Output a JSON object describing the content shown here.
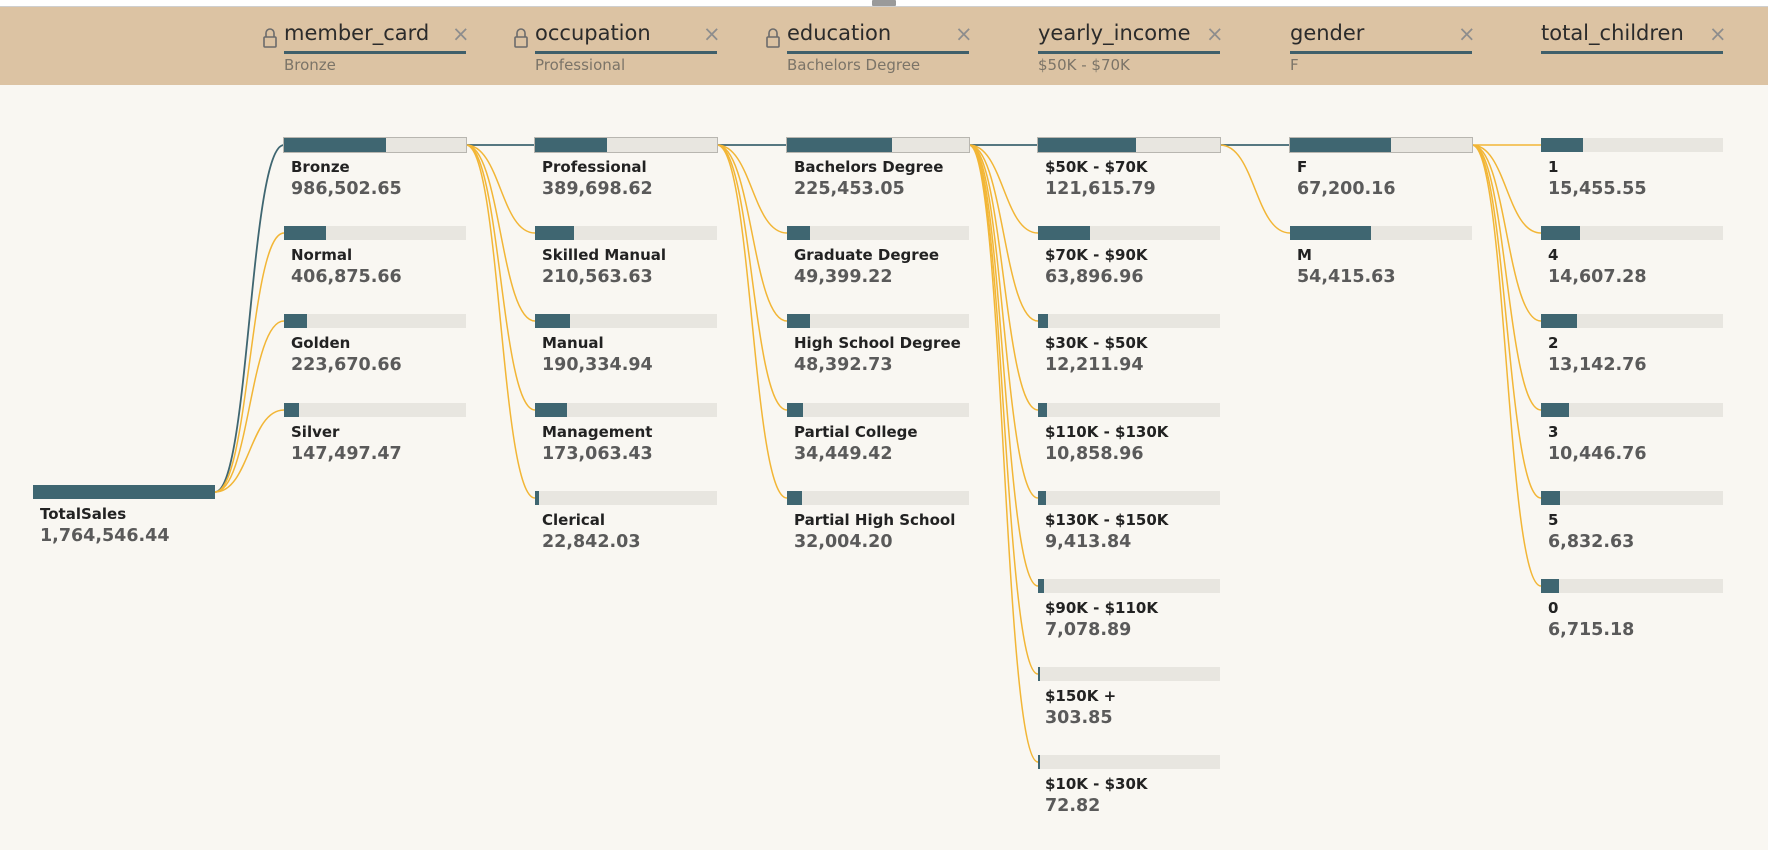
{
  "colors": {
    "header_bg": "#dcc3a3",
    "canvas_bg": "#f9f7f2",
    "bar_fill": "#3f6671",
    "bar_track": "#e8e6e0",
    "link_selected": "#3f6671",
    "link_other": "#f2b636"
  },
  "levels": [
    {
      "name": "member_card",
      "value": "Bronze",
      "locked": true
    },
    {
      "name": "occupation",
      "value": "Professional",
      "locked": true
    },
    {
      "name": "education",
      "value": "Bachelors Degree",
      "locked": true
    },
    {
      "name": "yearly_income",
      "value": "$50K - $70K",
      "locked": false
    },
    {
      "name": "gender",
      "value": "F",
      "locked": false
    },
    {
      "name": "total_children",
      "value": "",
      "locked": false
    }
  ],
  "root": {
    "label": "TotalSales",
    "value": "1,764,546.44",
    "fraction": 1.0
  },
  "columns": [
    [
      {
        "label": "Bronze",
        "value": "986,502.65",
        "fraction": 0.559,
        "selected": true
      },
      {
        "label": "Normal",
        "value": "406,875.66",
        "fraction": 0.231
      },
      {
        "label": "Golden",
        "value": "223,670.66",
        "fraction": 0.127
      },
      {
        "label": "Silver",
        "value": "147,497.47",
        "fraction": 0.084
      }
    ],
    [
      {
        "label": "Professional",
        "value": "389,698.62",
        "fraction": 0.395,
        "selected": true
      },
      {
        "label": "Skilled Manual",
        "value": "210,563.63",
        "fraction": 0.213
      },
      {
        "label": "Manual",
        "value": "190,334.94",
        "fraction": 0.193
      },
      {
        "label": "Management",
        "value": "173,063.43",
        "fraction": 0.175
      },
      {
        "label": "Clerical",
        "value": "22,842.03",
        "fraction": 0.023
      }
    ],
    [
      {
        "label": "Bachelors Degree",
        "value": "225,453.05",
        "fraction": 0.579,
        "selected": true
      },
      {
        "label": "Graduate Degree",
        "value": "49,399.22",
        "fraction": 0.127
      },
      {
        "label": "High School Degree",
        "value": "48,392.73",
        "fraction": 0.124
      },
      {
        "label": "Partial College",
        "value": "34,449.42",
        "fraction": 0.088
      },
      {
        "label": "Partial High School",
        "value": "32,004.20",
        "fraction": 0.082
      }
    ],
    [
      {
        "label": "$50K - $70K",
        "value": "121,615.79",
        "fraction": 0.539,
        "selected": true
      },
      {
        "label": "$70K - $90K",
        "value": "63,896.96",
        "fraction": 0.283
      },
      {
        "label": "$30K - $50K",
        "value": "12,211.94",
        "fraction": 0.054
      },
      {
        "label": "$110K - $130K",
        "value": "10,858.96",
        "fraction": 0.048
      },
      {
        "label": "$130K - $150K",
        "value": "9,413.84",
        "fraction": 0.042
      },
      {
        "label": "$90K - $110K",
        "value": "7,078.89",
        "fraction": 0.031
      },
      {
        "label": "$150K +",
        "value": "303.85",
        "fraction": 0.0013
      },
      {
        "label": "$10K - $30K",
        "value": "72.82",
        "fraction": 0.0003
      }
    ],
    [
      {
        "label": "F",
        "value": "67,200.16",
        "fraction": 0.553,
        "selected": true
      },
      {
        "label": "M",
        "value": "54,415.63",
        "fraction": 0.447
      }
    ],
    [
      {
        "label": "1",
        "value": "15,455.55",
        "fraction": 0.23
      },
      {
        "label": "4",
        "value": "14,607.28",
        "fraction": 0.217
      },
      {
        "label": "2",
        "value": "13,142.76",
        "fraction": 0.196
      },
      {
        "label": "3",
        "value": "10,446.76",
        "fraction": 0.155
      },
      {
        "label": "5",
        "value": "6,832.63",
        "fraction": 0.102
      },
      {
        "label": "0",
        "value": "6,715.18",
        "fraction": 0.1
      }
    ]
  ]
}
